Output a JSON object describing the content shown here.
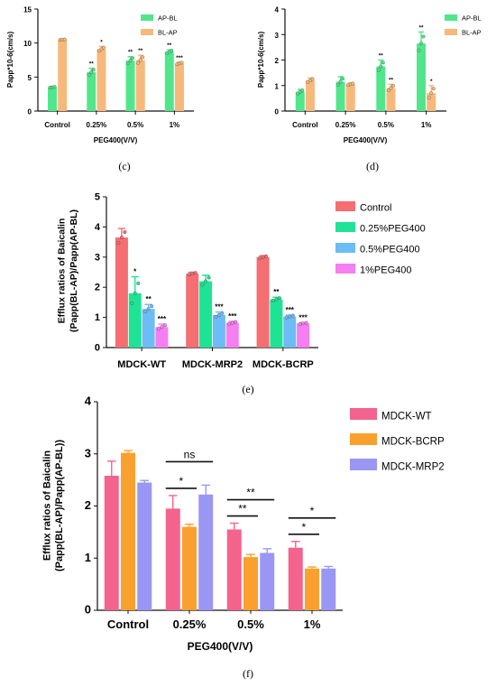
{
  "panels": [
    {
      "id": "c",
      "caption": "(c)",
      "chart_data": {
        "type": "bar",
        "categories": [
          "Control",
          "0.25%",
          "0.5%",
          "1%"
        ],
        "ylabel": "Papp*10-6(cm/s)",
        "xlabel": "PEG400(V/V)",
        "ylim": [
          0,
          15
        ],
        "yticks": [
          "0",
          "5",
          "10",
          "15"
        ],
        "legend_position": "top-right",
        "series": [
          {
            "name": "AP-BL",
            "color": "#52e68c",
            "values": [
              3.5,
              5.7,
              7.4,
              8.7
            ],
            "errors": [
              0.1,
              0.6,
              0.6,
              0.3
            ],
            "sig": [
              "",
              "**",
              "**",
              "**"
            ]
          },
          {
            "name": "BL-AP",
            "color": "#f7b97b",
            "values": [
              10.5,
              9.1,
              7.5,
              7.0
            ],
            "errors": [
              0.05,
              0.4,
              0.7,
              0.2
            ],
            "sig": [
              "",
              "*",
              "**",
              "***"
            ]
          }
        ]
      }
    },
    {
      "id": "d",
      "caption": "(d)",
      "chart_data": {
        "type": "bar",
        "categories": [
          "Control",
          "0.25%",
          "0.5%",
          "1%"
        ],
        "ylabel": "Papp*10-6(cm/s)",
        "xlabel": "PEG400(V/V)",
        "ylim": [
          0,
          4
        ],
        "yticks": [
          "0",
          "1",
          "2",
          "3",
          "4"
        ],
        "legend_position": "top-right",
        "series": [
          {
            "name": "AP-BL",
            "color": "#52e68c",
            "values": [
              0.75,
              1.15,
              1.75,
              2.65
            ],
            "errors": [
              0.1,
              0.2,
              0.25,
              0.45
            ],
            "sig": [
              "",
              "",
              "**",
              "**"
            ]
          },
          {
            "name": "BL-AP",
            "color": "#f7b97b",
            "values": [
              1.2,
              1.05,
              0.9,
              0.7
            ],
            "errors": [
              0.1,
              0.05,
              0.15,
              0.3
            ],
            "sig": [
              "",
              "",
              "**",
              "*"
            ]
          }
        ]
      }
    },
    {
      "id": "e",
      "caption": "(e)",
      "chart_data": {
        "type": "bar",
        "categories": [
          "MDCK-WT",
          "MDCK-MRP2",
          "MDCK-BCRP"
        ],
        "ylabel": "Efflux ratios of Baicalin (Papp(BL-AP)/Papp(AP-BL)",
        "xlabel": "",
        "ylim": [
          0,
          5
        ],
        "yticks": [
          "0",
          "1",
          "2",
          "3",
          "4",
          "5"
        ],
        "legend_position": "right",
        "series": [
          {
            "name": "Control",
            "color": "#f46e72",
            "values": [
              3.65,
              2.45,
              3.0
            ],
            "errors": [
              0.3,
              0.05,
              0.05
            ],
            "sig": [
              "",
              "",
              ""
            ]
          },
          {
            "name": "0.25%PEG400",
            "color": "#1fe394",
            "values": [
              1.8,
              2.2,
              1.6
            ],
            "errors": [
              0.55,
              0.2,
              0.07
            ],
            "sig": [
              "*",
              "",
              "**"
            ]
          },
          {
            "name": "0.5%PEG400",
            "color": "#6cbcf5",
            "values": [
              1.28,
              1.08,
              1.03
            ],
            "errors": [
              0.15,
              0.1,
              0.05
            ],
            "sig": [
              "**",
              "***",
              "***"
            ]
          },
          {
            "name": "1%PEG400",
            "color": "#f57ef2",
            "values": [
              0.68,
              0.82,
              0.8
            ],
            "errors": [
              0.1,
              0.05,
              0.03
            ],
            "sig": [
              "***",
              "***",
              "***"
            ]
          }
        ]
      }
    },
    {
      "id": "f",
      "caption": "(f)",
      "chart_data": {
        "type": "bar",
        "categories": [
          "Control",
          "0.25%",
          "0.5%",
          "1%"
        ],
        "ylabel": "Efflux ratios of Baicalin (Papp(BL-AP)/Papp(AP-BL))",
        "xlabel": "PEG400(V/V)",
        "ylim": [
          0,
          4
        ],
        "yticks": [
          "0",
          "1",
          "2",
          "3",
          "4"
        ],
        "legend_position": "top-right",
        "series": [
          {
            "name": "MDCK-WT",
            "color": "#f4638e",
            "values": [
              2.58,
              1.95,
              1.55,
              1.2
            ],
            "errors": [
              0.28,
              0.25,
              0.12,
              0.12
            ]
          },
          {
            "name": "MDCK-BCRP",
            "color": "#faa02e",
            "values": [
              3.02,
              1.6,
              1.02,
              0.8
            ],
            "errors": [
              0.04,
              0.05,
              0.05,
              0.03
            ]
          },
          {
            "name": "MDCK-MRP2",
            "color": "#9a96f4",
            "values": [
              2.45,
              2.22,
              1.1,
              0.8
            ],
            "errors": [
              0.04,
              0.18,
              0.08,
              0.04
            ]
          }
        ],
        "annotations": [
          {
            "label": "*",
            "group": 1,
            "pair": [
              0,
              1
            ]
          },
          {
            "label": "ns",
            "group": 1,
            "pair": [
              0,
              2
            ]
          },
          {
            "label": "**",
            "group": 2,
            "pair": [
              0,
              1
            ]
          },
          {
            "label": "**",
            "group": 2,
            "pair": [
              0,
              2
            ]
          },
          {
            "label": "*",
            "group": 3,
            "pair": [
              0,
              1
            ]
          },
          {
            "label": "*",
            "group": 3,
            "pair": [
              0,
              2
            ]
          }
        ]
      }
    }
  ]
}
